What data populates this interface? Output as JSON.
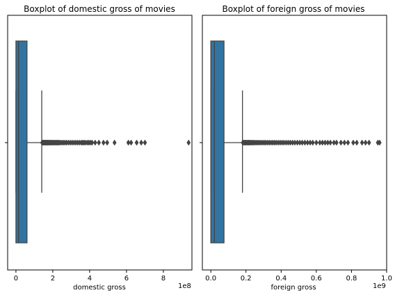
{
  "chart_data": [
    {
      "type": "boxplot",
      "title": "Boxplot of domestic gross of movies",
      "xlabel": "domestic gross",
      "scale_label": "1e8",
      "xlim": [
        -0.45,
        9.55
      ],
      "xticks": [
        0,
        2,
        4,
        6,
        8
      ],
      "xtick_labels": [
        "0",
        "2",
        "4",
        "6",
        "8"
      ],
      "box": {
        "whisker_low": 0.0,
        "q1": 0.0,
        "median": 0.14,
        "q3": 0.6,
        "whisker_high": 1.4
      },
      "outliers": [
        1.42,
        1.45,
        1.48,
        1.5,
        1.53,
        1.56,
        1.6,
        1.63,
        1.67,
        1.7,
        1.74,
        1.78,
        1.82,
        1.86,
        1.9,
        1.95,
        2.0,
        2.05,
        2.1,
        2.15,
        2.2,
        2.25,
        2.3,
        2.35,
        2.42,
        2.5,
        2.58,
        2.66,
        2.75,
        2.85,
        2.95,
        3.05,
        3.15,
        3.25,
        3.35,
        3.45,
        3.55,
        3.62,
        3.7,
        3.78,
        3.88,
        3.96,
        4.05,
        4.13,
        4.3,
        4.5,
        4.75,
        4.95,
        5.35,
        6.1,
        6.25,
        6.55,
        6.8,
        7.0,
        9.37
      ],
      "colors": {
        "box": "#3274a1",
        "line": "#444444",
        "outlier": "#444444"
      }
    },
    {
      "type": "boxplot",
      "title": "Boxplot of foreign gross of movies",
      "xlabel": "foreign gross",
      "scale_label": "1e9",
      "xlim": [
        -0.048,
        1.0
      ],
      "xticks": [
        0.0,
        0.2,
        0.4,
        0.6,
        0.8,
        1.0
      ],
      "xtick_labels": [
        "0.0",
        "0.2",
        "0.4",
        "0.6",
        "0.8",
        "1.0"
      ],
      "box": {
        "whisker_low": 0.0,
        "q1": 0.0,
        "median": 0.02,
        "q3": 0.075,
        "whisker_high": 0.18
      },
      "outliers": [
        0.182,
        0.186,
        0.19,
        0.195,
        0.2,
        0.205,
        0.21,
        0.215,
        0.22,
        0.226,
        0.232,
        0.238,
        0.245,
        0.252,
        0.26,
        0.268,
        0.276,
        0.285,
        0.294,
        0.303,
        0.312,
        0.322,
        0.332,
        0.342,
        0.352,
        0.362,
        0.372,
        0.383,
        0.394,
        0.405,
        0.416,
        0.428,
        0.44,
        0.452,
        0.465,
        0.478,
        0.492,
        0.506,
        0.52,
        0.535,
        0.55,
        0.565,
        0.58,
        0.6,
        0.62,
        0.635,
        0.65,
        0.665,
        0.68,
        0.7,
        0.715,
        0.74,
        0.76,
        0.78,
        0.81,
        0.83,
        0.86,
        0.88,
        0.9,
        0.95,
        0.96
      ],
      "colors": {
        "box": "#3274a1",
        "line": "#444444",
        "outlier": "#444444"
      }
    }
  ]
}
